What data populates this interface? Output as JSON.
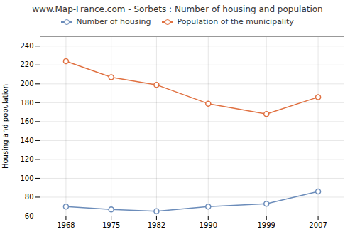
{
  "chart_data": {
    "type": "line",
    "title": "www.Map-France.com - Sorbets : Number of housing and population",
    "ylabel": "Housing and population",
    "x": [
      1968,
      1975,
      1982,
      1990,
      1999,
      2007
    ],
    "series": [
      {
        "name": "Number of housing",
        "color": "#6b8cba",
        "marker": "circle",
        "values": [
          70,
          67,
          65,
          70,
          73,
          86
        ]
      },
      {
        "name": "Population of the municipality",
        "color": "#e07040",
        "marker": "circle",
        "values": [
          224,
          207,
          199,
          179,
          168,
          186
        ]
      }
    ],
    "xlim": [
      1964,
      2011
    ],
    "xticks": [
      1968,
      1975,
      1982,
      1990,
      1999,
      2007
    ],
    "ylim": [
      60,
      250
    ],
    "yticks": [
      60,
      80,
      100,
      120,
      140,
      160,
      180,
      200,
      220,
      240
    ],
    "grid": true,
    "legend": "top"
  }
}
